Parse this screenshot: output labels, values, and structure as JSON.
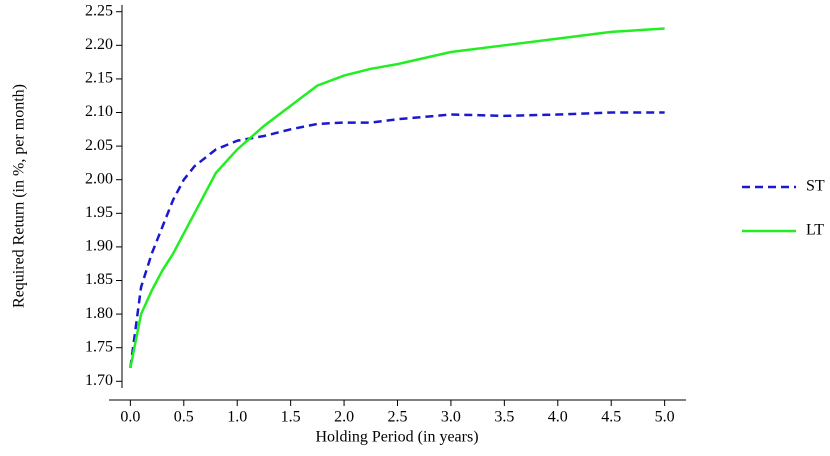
{
  "chart_data": {
    "type": "line",
    "x_label": "Holding Period (in years)",
    "y_label": "Required Return (in %, per month)",
    "x": [
      0,
      0.1,
      0.2,
      0.3,
      0.4,
      0.5,
      0.6,
      0.8,
      1.0,
      1.25,
      1.5,
      1.75,
      2.0,
      2.25,
      2.5,
      3.0,
      3.5,
      4.0,
      4.5,
      5.0
    ],
    "series": [
      {
        "name": "ST",
        "color": "#1a1acc",
        "dash": true,
        "values": [
          1.72,
          1.84,
          1.89,
          1.93,
          1.97,
          2.0,
          2.02,
          2.045,
          2.058,
          2.065,
          2.075,
          2.083,
          2.085,
          2.085,
          2.09,
          2.097,
          2.095,
          2.097,
          2.1,
          2.1
        ]
      },
      {
        "name": "LT",
        "color": "#22ee22",
        "dash": false,
        "values": [
          1.72,
          1.8,
          1.835,
          1.865,
          1.89,
          1.92,
          1.95,
          2.01,
          2.045,
          2.08,
          2.11,
          2.14,
          2.155,
          2.165,
          2.172,
          2.19,
          2.2,
          2.21,
          2.22,
          2.225
        ]
      }
    ],
    "xlim": [
      -0.2,
      5.2
    ],
    "ylim": [
      1.69,
      2.26
    ],
    "xticks": [
      {
        "value": 0,
        "label": "0.0"
      },
      0.5,
      {
        "value": 1,
        "label": "1.0"
      },
      1.5,
      {
        "value": 2,
        "label": "2.0"
      },
      2.5,
      {
        "value": 3,
        "label": "3.0"
      },
      3.5,
      {
        "value": 4,
        "label": "4.0"
      },
      4.5,
      {
        "value": 5,
        "label": "5.0"
      }
    ],
    "yticks": [
      {
        "value": 1.7,
        "label": "1.70"
      },
      1.75,
      {
        "value": 1.8,
        "label": "1.80"
      },
      1.85,
      {
        "value": 1.9,
        "label": "1.90"
      },
      1.95,
      {
        "value": 2.0,
        "label": "2.00"
      },
      2.05,
      {
        "value": 2.1,
        "label": "2.10"
      },
      2.15,
      {
        "value": 2.2,
        "label": "2.20"
      },
      2.25
    ],
    "grid": false,
    "legend": "right"
  }
}
